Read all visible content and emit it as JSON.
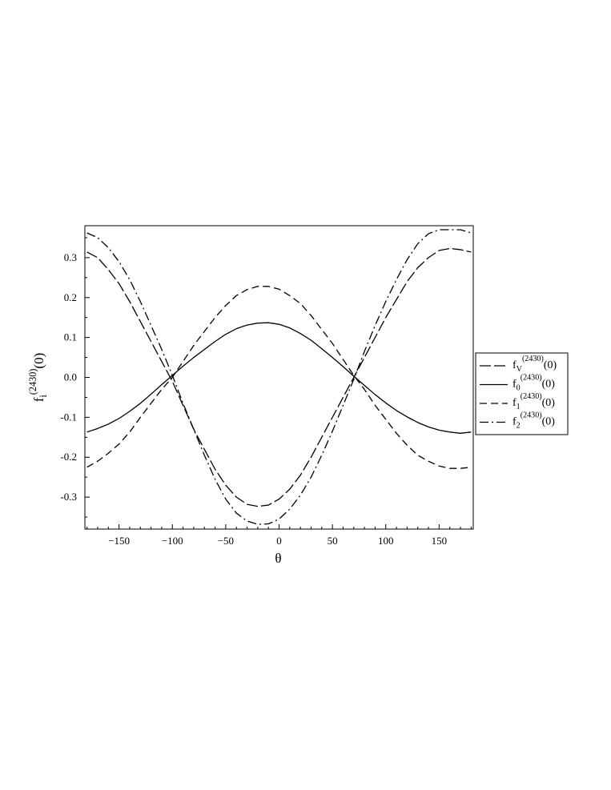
{
  "chart_data": {
    "type": "line",
    "xlabel": "θ",
    "ylabel": {
      "base": "f",
      "sub": "i",
      "sup": "(2430)",
      "arg": "(0)"
    },
    "xlim": [
      -182,
      182
    ],
    "ylim": [
      -0.38,
      0.38
    ],
    "x_ticks": [
      -150,
      -100,
      -50,
      0,
      50,
      100,
      150
    ],
    "x_tick_labels": [
      "−150",
      "−100",
      "−50",
      "0",
      "50",
      "100",
      "150"
    ],
    "y_ticks": [
      -0.3,
      -0.2,
      -0.1,
      0.0,
      0.1,
      0.2,
      0.3
    ],
    "y_tick_labels": [
      "-0.3",
      "-0.2",
      "-0.1",
      "0.0",
      "0.1",
      "0.2",
      "0.3"
    ],
    "grid": false,
    "legend_position": "right, outside plot",
    "x": [
      -180,
      -170,
      -160,
      -150,
      -140,
      -130,
      -120,
      -110,
      -100,
      -90,
      -80,
      -70,
      -60,
      -50,
      -40,
      -30,
      -20,
      -10,
      0,
      10,
      20,
      30,
      40,
      50,
      60,
      70,
      80,
      90,
      100,
      110,
      120,
      130,
      140,
      150,
      160,
      170,
      180
    ],
    "series": [
      {
        "name": {
          "base": "f",
          "sub": "V",
          "sup": "(2430)",
          "arg": "(0)"
        },
        "dash": "longdash",
        "values": [
          0.314,
          0.3,
          0.27,
          0.235,
          0.19,
          0.14,
          0.09,
          0.04,
          -0.01,
          -0.07,
          -0.13,
          -0.18,
          -0.23,
          -0.27,
          -0.3,
          -0.318,
          -0.323,
          -0.32,
          -0.305,
          -0.28,
          -0.245,
          -0.2,
          -0.15,
          -0.1,
          -0.05,
          0.0,
          0.05,
          0.1,
          0.15,
          0.195,
          0.24,
          0.275,
          0.3,
          0.318,
          0.323,
          0.32,
          0.314
        ]
      },
      {
        "name": {
          "base": "f",
          "sub": "0",
          "sup": "(2430)",
          "arg": "(0)"
        },
        "dash": "solid",
        "values": [
          -0.137,
          -0.128,
          -0.117,
          -0.103,
          -0.085,
          -0.065,
          -0.042,
          -0.018,
          0.005,
          0.028,
          0.05,
          0.07,
          0.09,
          0.108,
          0.122,
          0.131,
          0.136,
          0.137,
          0.133,
          0.124,
          0.11,
          0.093,
          0.072,
          0.05,
          0.027,
          0.003,
          -0.02,
          -0.043,
          -0.064,
          -0.083,
          -0.099,
          -0.113,
          -0.124,
          -0.132,
          -0.137,
          -0.14,
          -0.137
        ]
      },
      {
        "name": {
          "base": "f",
          "sub": "1",
          "sup": "(2430)",
          "arg": "(0)"
        },
        "dash": "dashed",
        "values": [
          -0.225,
          -0.21,
          -0.19,
          -0.167,
          -0.137,
          -0.1,
          -0.065,
          -0.03,
          0.0,
          0.04,
          0.08,
          0.115,
          0.15,
          0.18,
          0.205,
          0.22,
          0.228,
          0.228,
          0.221,
          0.205,
          0.185,
          0.155,
          0.12,
          0.085,
          0.045,
          0.005,
          -0.03,
          -0.07,
          -0.105,
          -0.14,
          -0.17,
          -0.195,
          -0.21,
          -0.222,
          -0.228,
          -0.228,
          -0.225
        ]
      },
      {
        "name": {
          "base": "f",
          "sub": "2",
          "sup": "(2430)",
          "arg": "(0)"
        },
        "dash": "dashdot",
        "values": [
          0.362,
          0.35,
          0.325,
          0.29,
          0.245,
          0.19,
          0.13,
          0.07,
          0.005,
          -0.065,
          -0.13,
          -0.195,
          -0.255,
          -0.305,
          -0.34,
          -0.36,
          -0.368,
          -0.367,
          -0.355,
          -0.33,
          -0.295,
          -0.25,
          -0.195,
          -0.135,
          -0.07,
          -0.005,
          0.065,
          0.13,
          0.19,
          0.245,
          0.295,
          0.335,
          0.36,
          0.37,
          0.37,
          0.37,
          0.362
        ]
      }
    ]
  }
}
